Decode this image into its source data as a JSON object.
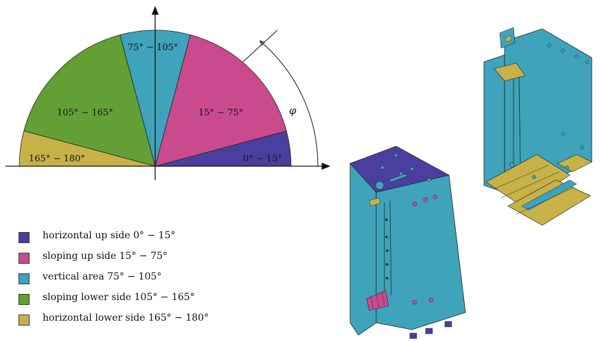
{
  "diagram": {
    "sectors": [
      {
        "id": "horizontal-up",
        "label": "0° − 15°",
        "from": 0,
        "to": 15,
        "color": "#4a3f9f"
      },
      {
        "id": "sloping-up",
        "label": "15° − 75°",
        "from": 15,
        "to": 75,
        "color": "#c94b8d"
      },
      {
        "id": "vertical",
        "label": "75° − 105°",
        "from": 75,
        "to": 105,
        "color": "#3ea3bb"
      },
      {
        "id": "sloping-lower",
        "label": "105° − 165°",
        "from": 105,
        "to": 165,
        "color": "#62a035"
      },
      {
        "id": "horizontal-lower",
        "label": "165° − 180°",
        "from": 165,
        "to": 180,
        "color": "#c7b24a"
      }
    ],
    "angle_symbol": "φ"
  },
  "legend": [
    {
      "text": "horizontal up side 0° − 15°",
      "color": "#4a3f9f"
    },
    {
      "text": "sloping up side 15° − 75°",
      "color": "#c94b8d"
    },
    {
      "text": "vertical area 75° − 105°",
      "color": "#3ea3bb"
    },
    {
      "text": "sloping lower side 105° − 165°",
      "color": "#62a035"
    },
    {
      "text": "horizontal lower side 165° − 180°",
      "color": "#c7b24a"
    }
  ],
  "colors": {
    "part_body": "#3ea3bb",
    "part_top": "#4a3f9f",
    "part_horizontal_lower": "#c7b24a",
    "part_sloping_up": "#c94b8d",
    "part_holes": "#c94b8d",
    "outline": "#222222"
  }
}
